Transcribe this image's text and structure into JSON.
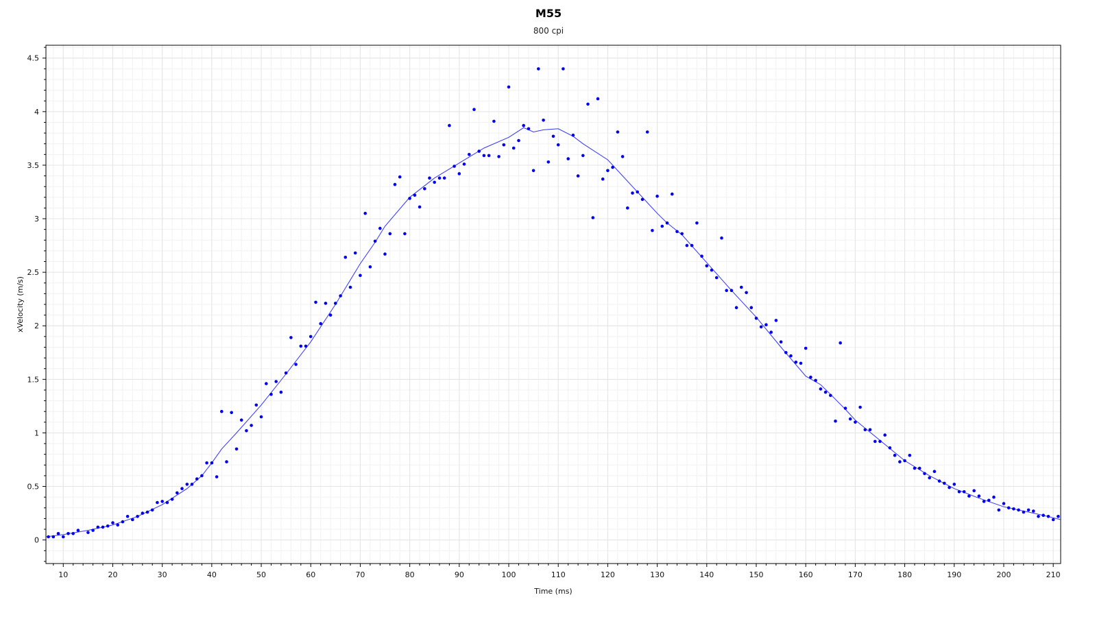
{
  "chart_data": {
    "type": "scatter",
    "title": "M55",
    "subtitle": "800 cpi",
    "xlabel": "Time (ms)",
    "ylabel": "xVelocity (m/s)",
    "xlim": [
      6.5,
      211.5
    ],
    "ylim": [
      -0.22,
      4.62
    ],
    "x_ticks": [
      10,
      20,
      30,
      40,
      50,
      60,
      70,
      80,
      90,
      100,
      110,
      120,
      130,
      140,
      150,
      160,
      170,
      180,
      190,
      200,
      210
    ],
    "y_ticks": [
      0,
      0.5,
      1,
      1.5,
      2,
      2.5,
      3,
      3.5,
      4,
      4.5
    ],
    "y_tick_labels": [
      "0",
      "0.5",
      "1",
      "1.5",
      "2",
      "2.5",
      "3",
      "3.5",
      "4",
      "4.5"
    ],
    "grid": true,
    "legend": "none",
    "colors": {
      "points": "#0000ee",
      "line": "#3333ff",
      "grid": "#e4e4e4",
      "axis": "#000000"
    },
    "series": [
      {
        "type": "scatter",
        "points": [
          [
            7,
            0.03
          ],
          [
            8,
            0.03
          ],
          [
            9,
            0.06
          ],
          [
            10,
            0.03
          ],
          [
            11,
            0.06
          ],
          [
            12,
            0.06
          ],
          [
            13,
            0.09
          ],
          [
            15,
            0.07
          ],
          [
            16,
            0.09
          ],
          [
            17,
            0.12
          ],
          [
            18,
            0.12
          ],
          [
            19,
            0.13
          ],
          [
            20,
            0.16
          ],
          [
            21,
            0.14
          ],
          [
            22,
            0.17
          ],
          [
            23,
            0.22
          ],
          [
            24,
            0.19
          ],
          [
            25,
            0.22
          ],
          [
            26,
            0.25
          ],
          [
            27,
            0.26
          ],
          [
            28,
            0.28
          ],
          [
            29,
            0.35
          ],
          [
            30,
            0.36
          ],
          [
            31,
            0.35
          ],
          [
            32,
            0.38
          ],
          [
            33,
            0.44
          ],
          [
            34,
            0.48
          ],
          [
            35,
            0.52
          ],
          [
            36,
            0.52
          ],
          [
            37,
            0.57
          ],
          [
            38,
            0.6
          ],
          [
            39,
            0.72
          ],
          [
            40,
            0.72
          ],
          [
            41,
            0.59
          ],
          [
            42,
            1.2
          ],
          [
            43,
            0.73
          ],
          [
            44,
            1.19
          ],
          [
            45,
            0.85
          ],
          [
            46,
            1.12
          ],
          [
            47,
            1.02
          ],
          [
            48,
            1.07
          ],
          [
            49,
            1.26
          ],
          [
            50,
            1.15
          ],
          [
            51,
            1.46
          ],
          [
            52,
            1.36
          ],
          [
            53,
            1.48
          ],
          [
            54,
            1.38
          ],
          [
            55,
            1.56
          ],
          [
            56,
            1.89
          ],
          [
            57,
            1.64
          ],
          [
            58,
            1.81
          ],
          [
            59,
            1.81
          ],
          [
            60,
            1.9
          ],
          [
            61,
            2.22
          ],
          [
            62,
            2.02
          ],
          [
            63,
            2.21
          ],
          [
            64,
            2.1
          ],
          [
            65,
            2.21
          ],
          [
            66,
            2.28
          ],
          [
            67,
            2.64
          ],
          [
            68,
            2.36
          ],
          [
            69,
            2.68
          ],
          [
            70,
            2.47
          ],
          [
            71,
            3.05
          ],
          [
            72,
            2.55
          ],
          [
            73,
            2.79
          ],
          [
            74,
            2.91
          ],
          [
            75,
            2.67
          ],
          [
            76,
            2.86
          ],
          [
            77,
            3.32
          ],
          [
            78,
            3.39
          ],
          [
            79,
            2.86
          ],
          [
            80,
            3.19
          ],
          [
            81,
            3.22
          ],
          [
            82,
            3.11
          ],
          [
            83,
            3.28
          ],
          [
            84,
            3.38
          ],
          [
            85,
            3.34
          ],
          [
            86,
            3.38
          ],
          [
            87,
            3.38
          ],
          [
            88,
            3.87
          ],
          [
            89,
            3.49
          ],
          [
            90,
            3.42
          ],
          [
            91,
            3.51
          ],
          [
            92,
            3.6
          ],
          [
            93,
            4.02
          ],
          [
            94,
            3.63
          ],
          [
            95,
            3.59
          ],
          [
            96,
            3.59
          ],
          [
            97,
            3.91
          ],
          [
            98,
            3.58
          ],
          [
            99,
            3.69
          ],
          [
            100,
            4.23
          ],
          [
            101,
            3.66
          ],
          [
            102,
            3.73
          ],
          [
            103,
            3.87
          ],
          [
            104,
            3.84
          ],
          [
            105,
            3.45
          ],
          [
            106,
            4.4
          ],
          [
            107,
            3.92
          ],
          [
            108,
            3.53
          ],
          [
            109,
            3.77
          ],
          [
            110,
            3.69
          ],
          [
            111,
            4.4
          ],
          [
            112,
            3.56
          ],
          [
            113,
            3.78
          ],
          [
            114,
            3.4
          ],
          [
            115,
            3.59
          ],
          [
            116,
            4.07
          ],
          [
            117,
            3.01
          ],
          [
            118,
            4.12
          ],
          [
            119,
            3.37
          ],
          [
            120,
            3.45
          ],
          [
            121,
            3.48
          ],
          [
            122,
            3.81
          ],
          [
            123,
            3.58
          ],
          [
            124,
            3.1
          ],
          [
            125,
            3.24
          ],
          [
            126,
            3.25
          ],
          [
            127,
            3.18
          ],
          [
            128,
            3.81
          ],
          [
            129,
            2.89
          ],
          [
            130,
            3.21
          ],
          [
            131,
            2.93
          ],
          [
            132,
            2.96
          ],
          [
            133,
            3.23
          ],
          [
            134,
            2.88
          ],
          [
            135,
            2.86
          ],
          [
            136,
            2.75
          ],
          [
            137,
            2.75
          ],
          [
            138,
            2.96
          ],
          [
            139,
            2.65
          ],
          [
            140,
            2.56
          ],
          [
            141,
            2.52
          ],
          [
            142,
            2.45
          ],
          [
            143,
            2.82
          ],
          [
            144,
            2.33
          ],
          [
            145,
            2.33
          ],
          [
            146,
            2.17
          ],
          [
            147,
            2.36
          ],
          [
            148,
            2.31
          ],
          [
            149,
            2.17
          ],
          [
            150,
            2.07
          ],
          [
            151,
            1.99
          ],
          [
            152,
            2.01
          ],
          [
            153,
            1.94
          ],
          [
            154,
            2.05
          ],
          [
            155,
            1.85
          ],
          [
            156,
            1.75
          ],
          [
            157,
            1.72
          ],
          [
            158,
            1.66
          ],
          [
            159,
            1.65
          ],
          [
            160,
            1.79
          ],
          [
            161,
            1.52
          ],
          [
            162,
            1.49
          ],
          [
            163,
            1.41
          ],
          [
            164,
            1.38
          ],
          [
            165,
            1.35
          ],
          [
            166,
            1.11
          ],
          [
            167,
            1.84
          ],
          [
            168,
            1.23
          ],
          [
            169,
            1.13
          ],
          [
            170,
            1.1
          ],
          [
            171,
            1.24
          ],
          [
            172,
            1.03
          ],
          [
            173,
            1.03
          ],
          [
            174,
            0.92
          ],
          [
            175,
            0.92
          ],
          [
            176,
            0.98
          ],
          [
            177,
            0.86
          ],
          [
            178,
            0.79
          ],
          [
            179,
            0.73
          ],
          [
            180,
            0.74
          ],
          [
            181,
            0.79
          ],
          [
            182,
            0.67
          ],
          [
            183,
            0.67
          ],
          [
            184,
            0.62
          ],
          [
            185,
            0.58
          ],
          [
            186,
            0.64
          ],
          [
            187,
            0.55
          ],
          [
            188,
            0.53
          ],
          [
            189,
            0.49
          ],
          [
            190,
            0.52
          ],
          [
            191,
            0.45
          ],
          [
            192,
            0.45
          ],
          [
            193,
            0.41
          ],
          [
            194,
            0.46
          ],
          [
            195,
            0.41
          ],
          [
            196,
            0.36
          ],
          [
            197,
            0.37
          ],
          [
            198,
            0.4
          ],
          [
            199,
            0.28
          ],
          [
            200,
            0.34
          ],
          [
            201,
            0.3
          ],
          [
            202,
            0.29
          ],
          [
            203,
            0.28
          ],
          [
            204,
            0.26
          ],
          [
            205,
            0.28
          ],
          [
            206,
            0.27
          ],
          [
            207,
            0.22
          ],
          [
            208,
            0.23
          ],
          [
            209,
            0.22
          ],
          [
            210,
            0.19
          ],
          [
            211,
            0.22
          ]
        ]
      },
      {
        "type": "line",
        "points": [
          [
            6.5,
            0.03
          ],
          [
            10,
            0.05
          ],
          [
            15,
            0.09
          ],
          [
            20,
            0.14
          ],
          [
            25,
            0.22
          ],
          [
            30,
            0.33
          ],
          [
            35,
            0.48
          ],
          [
            38,
            0.6
          ],
          [
            40,
            0.72
          ],
          [
            42,
            0.85
          ],
          [
            45,
            1.0
          ],
          [
            50,
            1.26
          ],
          [
            55,
            1.55
          ],
          [
            60,
            1.85
          ],
          [
            65,
            2.2
          ],
          [
            70,
            2.58
          ],
          [
            73,
            2.78
          ],
          [
            75,
            2.93
          ],
          [
            80,
            3.2
          ],
          [
            85,
            3.38
          ],
          [
            90,
            3.52
          ],
          [
            95,
            3.66
          ],
          [
            100,
            3.76
          ],
          [
            103,
            3.85
          ],
          [
            105,
            3.81
          ],
          [
            107,
            3.83
          ],
          [
            110,
            3.84
          ],
          [
            113,
            3.77
          ],
          [
            115,
            3.7
          ],
          [
            120,
            3.55
          ],
          [
            123,
            3.4
          ],
          [
            125,
            3.3
          ],
          [
            128,
            3.15
          ],
          [
            130,
            3.05
          ],
          [
            132,
            2.96
          ],
          [
            135,
            2.85
          ],
          [
            140,
            2.59
          ],
          [
            145,
            2.33
          ],
          [
            150,
            2.08
          ],
          [
            155,
            1.8
          ],
          [
            160,
            1.53
          ],
          [
            163,
            1.45
          ],
          [
            165,
            1.36
          ],
          [
            168,
            1.22
          ],
          [
            170,
            1.12
          ],
          [
            175,
            0.93
          ],
          [
            180,
            0.74
          ],
          [
            185,
            0.6
          ],
          [
            190,
            0.48
          ],
          [
            195,
            0.39
          ],
          [
            200,
            0.31
          ],
          [
            205,
            0.26
          ],
          [
            208,
            0.23
          ],
          [
            211.5,
            0.19
          ]
        ]
      }
    ]
  }
}
